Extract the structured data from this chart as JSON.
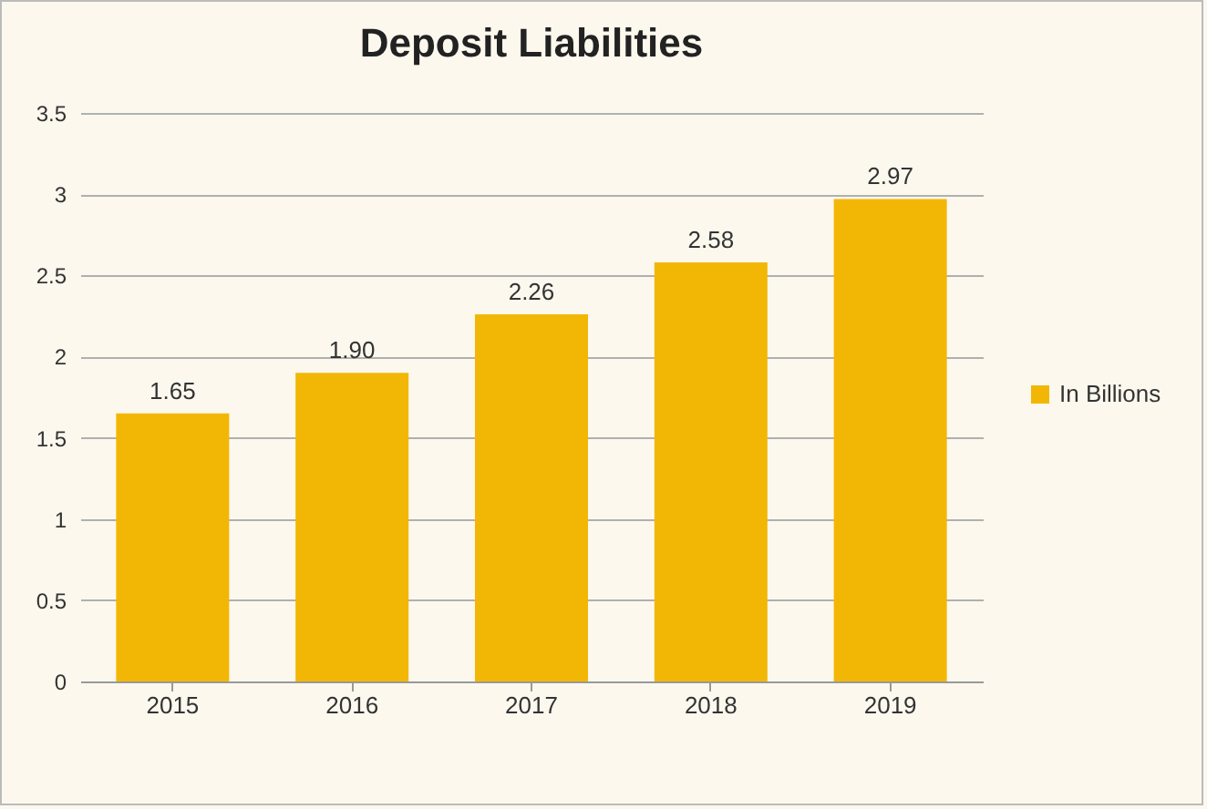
{
  "chart_data": {
    "type": "bar",
    "title": "Deposit Liabilities",
    "categories": [
      "2015",
      "2016",
      "2017",
      "2018",
      "2019"
    ],
    "series": [
      {
        "name": "In Billions",
        "color": "#f2b705",
        "values": [
          1.65,
          1.9,
          2.26,
          2.58,
          2.97
        ],
        "value_labels": [
          "1.65",
          "1.90",
          "2.26",
          "2.58",
          "2.97"
        ]
      }
    ],
    "ylim": [
      0,
      3.5
    ],
    "yticks": [
      0,
      0.5,
      1,
      1.5,
      2,
      2.5,
      3,
      3.5
    ],
    "grid": "y",
    "legend": "right"
  }
}
